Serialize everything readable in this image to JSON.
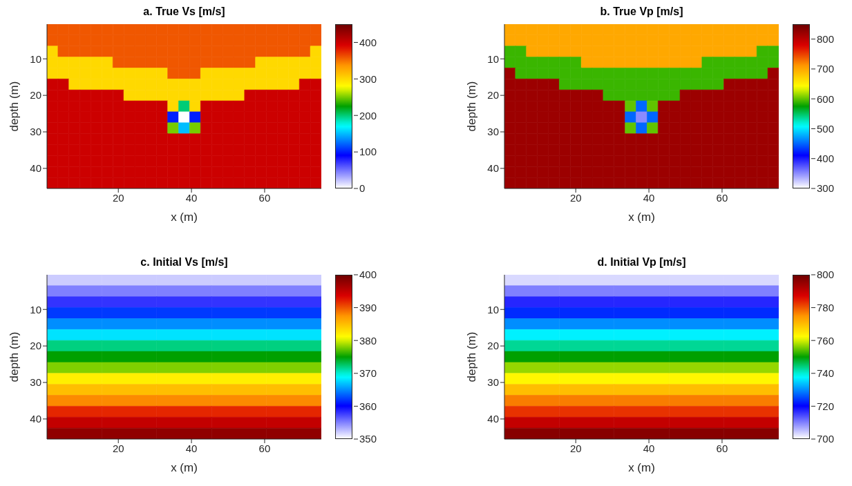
{
  "chart_data": [
    {
      "type": "heatmap",
      "title": "a. True Vs [m/s]",
      "xlabel": "x (m)",
      "ylabel": "depth (m)",
      "xlim": [
        0.5,
        75.5
      ],
      "xticks": [
        20,
        40,
        60
      ],
      "ylim": [
        45.5,
        0.5
      ],
      "yticks": [
        10,
        20,
        30,
        40
      ],
      "clim": [
        0,
        450
      ],
      "cticks": [
        0,
        100,
        200,
        300,
        400
      ],
      "x": [
        2,
        5,
        8,
        11,
        14,
        17,
        20,
        23,
        26,
        29,
        32,
        35,
        38,
        41,
        44,
        47,
        50,
        53,
        56,
        59,
        62,
        65,
        68,
        71,
        74
      ],
      "y": [
        2,
        5,
        8,
        11,
        14,
        17,
        20,
        23,
        26,
        29,
        32,
        35,
        38,
        41,
        44
      ],
      "cells": [
        [
          360,
          360,
          360,
          360,
          360,
          360,
          360,
          360,
          360,
          360,
          360,
          360,
          360,
          360,
          360,
          360,
          360,
          360,
          360,
          360,
          360,
          360,
          360,
          360,
          360
        ],
        [
          360,
          360,
          360,
          360,
          360,
          360,
          360,
          360,
          360,
          360,
          360,
          360,
          360,
          360,
          360,
          360,
          360,
          360,
          360,
          360,
          360,
          360,
          360,
          360,
          360
        ],
        [
          300,
          360,
          360,
          360,
          360,
          360,
          360,
          360,
          360,
          360,
          360,
          360,
          360,
          360,
          360,
          360,
          360,
          360,
          360,
          360,
          360,
          360,
          360,
          360,
          300
        ],
        [
          300,
          300,
          300,
          300,
          300,
          300,
          360,
          360,
          360,
          360,
          360,
          360,
          360,
          360,
          360,
          360,
          360,
          360,
          360,
          300,
          300,
          300,
          300,
          300,
          300
        ],
        [
          300,
          300,
          300,
          300,
          300,
          300,
          300,
          300,
          300,
          300,
          300,
          360,
          360,
          360,
          300,
          300,
          300,
          300,
          300,
          300,
          300,
          300,
          300,
          300,
          300
        ],
        [
          400,
          400,
          300,
          300,
          300,
          300,
          300,
          300,
          300,
          300,
          300,
          300,
          300,
          300,
          300,
          300,
          300,
          300,
          300,
          300,
          300,
          300,
          300,
          400,
          400
        ],
        [
          400,
          400,
          400,
          400,
          400,
          400,
          400,
          300,
          300,
          300,
          300,
          300,
          300,
          300,
          300,
          300,
          300,
          300,
          400,
          400,
          400,
          400,
          400,
          400,
          400
        ],
        [
          400,
          400,
          400,
          400,
          400,
          400,
          400,
          400,
          400,
          400,
          400,
          300,
          200,
          300,
          400,
          400,
          400,
          400,
          400,
          400,
          400,
          400,
          400,
          400,
          400
        ],
        [
          400,
          400,
          400,
          400,
          400,
          400,
          400,
          400,
          400,
          400,
          400,
          100,
          0,
          100,
          400,
          400,
          400,
          400,
          400,
          400,
          400,
          400,
          400,
          400,
          400
        ],
        [
          400,
          400,
          400,
          400,
          400,
          400,
          400,
          400,
          400,
          400,
          400,
          250,
          150,
          250,
          400,
          400,
          400,
          400,
          400,
          400,
          400,
          400,
          400,
          400,
          400
        ],
        [
          400,
          400,
          400,
          400,
          400,
          400,
          400,
          400,
          400,
          400,
          400,
          400,
          400,
          400,
          400,
          400,
          400,
          400,
          400,
          400,
          400,
          400,
          400,
          400,
          400
        ],
        [
          400,
          400,
          400,
          400,
          400,
          400,
          400,
          400,
          400,
          400,
          400,
          400,
          400,
          400,
          400,
          400,
          400,
          400,
          400,
          400,
          400,
          400,
          400,
          400,
          400
        ],
        [
          400,
          400,
          400,
          400,
          400,
          400,
          400,
          400,
          400,
          400,
          400,
          400,
          400,
          400,
          400,
          400,
          400,
          400,
          400,
          400,
          400,
          400,
          400,
          400,
          400
        ],
        [
          400,
          400,
          400,
          400,
          400,
          400,
          400,
          400,
          400,
          400,
          400,
          400,
          400,
          400,
          400,
          400,
          400,
          400,
          400,
          400,
          400,
          400,
          400,
          400,
          400
        ],
        [
          400,
          400,
          400,
          400,
          400,
          400,
          400,
          400,
          400,
          400,
          400,
          400,
          400,
          400,
          400,
          400,
          400,
          400,
          400,
          400,
          400,
          400,
          400,
          400,
          400
        ]
      ]
    },
    {
      "type": "heatmap",
      "title": "b. True Vp [m/s]",
      "xlabel": "x (m)",
      "ylabel": "depth (m)",
      "xlim": [
        0.5,
        75.5
      ],
      "xticks": [
        20,
        40,
        60
      ],
      "ylim": [
        45.5,
        0.5
      ],
      "yticks": [
        10,
        20,
        30,
        40
      ],
      "clim": [
        300,
        850
      ],
      "cticks": [
        300,
        400,
        500,
        600,
        700,
        800
      ],
      "x": [
        2,
        5,
        8,
        11,
        14,
        17,
        20,
        23,
        26,
        29,
        32,
        35,
        38,
        41,
        44,
        47,
        50,
        53,
        56,
        59,
        62,
        65,
        68,
        71,
        74
      ],
      "y": [
        2,
        5,
        8,
        11,
        14,
        17,
        20,
        23,
        26,
        29,
        32,
        35,
        38,
        41,
        44
      ],
      "cells": [
        [
          700,
          700,
          700,
          700,
          700,
          700,
          700,
          700,
          700,
          700,
          700,
          700,
          700,
          700,
          700,
          700,
          700,
          700,
          700,
          700,
          700,
          700,
          700,
          700,
          700
        ],
        [
          700,
          700,
          700,
          700,
          700,
          700,
          700,
          700,
          700,
          700,
          700,
          700,
          700,
          700,
          700,
          700,
          700,
          700,
          700,
          700,
          700,
          700,
          700,
          700,
          700
        ],
        [
          590,
          590,
          700,
          700,
          700,
          700,
          700,
          700,
          700,
          700,
          700,
          700,
          700,
          700,
          700,
          700,
          700,
          700,
          700,
          700,
          700,
          700,
          700,
          590,
          590
        ],
        [
          590,
          590,
          590,
          590,
          590,
          590,
          590,
          700,
          700,
          700,
          700,
          700,
          700,
          700,
          700,
          700,
          700,
          700,
          590,
          590,
          590,
          590,
          590,
          590,
          590
        ],
        [
          820,
          590,
          590,
          590,
          590,
          590,
          590,
          590,
          590,
          590,
          590,
          590,
          590,
          590,
          590,
          590,
          590,
          590,
          590,
          590,
          590,
          590,
          590,
          590,
          820
        ],
        [
          820,
          820,
          820,
          820,
          820,
          590,
          590,
          590,
          590,
          590,
          590,
          590,
          590,
          590,
          590,
          590,
          590,
          590,
          590,
          590,
          820,
          820,
          820,
          820,
          820
        ],
        [
          820,
          820,
          820,
          820,
          820,
          820,
          820,
          820,
          820,
          590,
          590,
          590,
          590,
          590,
          590,
          590,
          820,
          820,
          820,
          820,
          820,
          820,
          820,
          820,
          820
        ],
        [
          820,
          820,
          820,
          820,
          820,
          820,
          820,
          820,
          820,
          820,
          820,
          600,
          450,
          600,
          820,
          820,
          820,
          820,
          820,
          820,
          820,
          820,
          820,
          820,
          820
        ],
        [
          820,
          820,
          820,
          820,
          820,
          820,
          820,
          820,
          820,
          820,
          820,
          450,
          350,
          450,
          820,
          820,
          820,
          820,
          820,
          820,
          820,
          820,
          820,
          820,
          820
        ],
        [
          820,
          820,
          820,
          820,
          820,
          820,
          820,
          820,
          820,
          820,
          820,
          600,
          450,
          600,
          820,
          820,
          820,
          820,
          820,
          820,
          820,
          820,
          820,
          820,
          820
        ],
        [
          820,
          820,
          820,
          820,
          820,
          820,
          820,
          820,
          820,
          820,
          820,
          820,
          820,
          820,
          820,
          820,
          820,
          820,
          820,
          820,
          820,
          820,
          820,
          820,
          820
        ],
        [
          820,
          820,
          820,
          820,
          820,
          820,
          820,
          820,
          820,
          820,
          820,
          820,
          820,
          820,
          820,
          820,
          820,
          820,
          820,
          820,
          820,
          820,
          820,
          820,
          820
        ],
        [
          820,
          820,
          820,
          820,
          820,
          820,
          820,
          820,
          820,
          820,
          820,
          820,
          820,
          820,
          820,
          820,
          820,
          820,
          820,
          820,
          820,
          820,
          820,
          820,
          820
        ],
        [
          820,
          820,
          820,
          820,
          820,
          820,
          820,
          820,
          820,
          820,
          820,
          820,
          820,
          820,
          820,
          820,
          820,
          820,
          820,
          820,
          820,
          820,
          820,
          820,
          820
        ],
        [
          820,
          820,
          820,
          820,
          820,
          820,
          820,
          820,
          820,
          820,
          820,
          820,
          820,
          820,
          820,
          820,
          820,
          820,
          820,
          820,
          820,
          820,
          820,
          820,
          820
        ]
      ]
    },
    {
      "type": "heatmap",
      "title": "c. Initial Vs [m/s]",
      "xlabel": "x (m)",
      "ylabel": "depth (m)",
      "xlim": [
        0.5,
        75.5
      ],
      "xticks": [
        20,
        40,
        60
      ],
      "ylim": [
        45.5,
        0.5
      ],
      "yticks": [
        10,
        20,
        30,
        40
      ],
      "clim": [
        350,
        400
      ],
      "cticks": [
        350,
        360,
        370,
        380,
        390,
        400
      ],
      "x": [
        8,
        23,
        38,
        53,
        68
      ],
      "y": [
        2,
        5,
        8,
        11,
        14,
        17,
        20,
        23,
        26,
        29,
        32,
        35,
        38,
        41,
        44
      ],
      "cells": [
        [
          352,
          352,
          352,
          352,
          352
        ],
        [
          355,
          355,
          355,
          355,
          355
        ],
        [
          358,
          358,
          358,
          358,
          358
        ],
        [
          362,
          362,
          362,
          362,
          362
        ],
        [
          365,
          365,
          365,
          365,
          365
        ],
        [
          368,
          368,
          368,
          368,
          368
        ],
        [
          372,
          372,
          372,
          372,
          372
        ],
        [
          375,
          375,
          375,
          375,
          375
        ],
        [
          378,
          378,
          378,
          378,
          378
        ],
        [
          382,
          382,
          382,
          382,
          382
        ],
        [
          385,
          385,
          385,
          385,
          385
        ],
        [
          388,
          388,
          388,
          388,
          388
        ],
        [
          392,
          392,
          392,
          392,
          392
        ],
        [
          395,
          395,
          395,
          395,
          395
        ],
        [
          398,
          398,
          398,
          398,
          398
        ]
      ]
    },
    {
      "type": "heatmap",
      "title": "d. Initial Vp [m/s]",
      "xlabel": "x (m)",
      "ylabel": "depth (m)",
      "xlim": [
        0.5,
        75.5
      ],
      "xticks": [
        20,
        40,
        60
      ],
      "ylim": [
        45.5,
        0.5
      ],
      "yticks": [
        10,
        20,
        30,
        40
      ],
      "clim": [
        700,
        800
      ],
      "cticks": [
        700,
        720,
        740,
        760,
        780,
        800
      ],
      "x": [
        8,
        23,
        38,
        53,
        68
      ],
      "y": [
        2,
        5,
        8,
        11,
        14,
        17,
        20,
        23,
        26,
        29,
        32,
        35,
        38,
        41,
        44
      ],
      "cells": [
        [
          703,
          703,
          703,
          703,
          703
        ],
        [
          710,
          710,
          710,
          710,
          710
        ],
        [
          717,
          717,
          717,
          717,
          717
        ],
        [
          723,
          723,
          723,
          723,
          723
        ],
        [
          730,
          730,
          730,
          730,
          730
        ],
        [
          737,
          737,
          737,
          737,
          737
        ],
        [
          743,
          743,
          743,
          743,
          743
        ],
        [
          750,
          750,
          750,
          750,
          750
        ],
        [
          757,
          757,
          757,
          757,
          757
        ],
        [
          763,
          763,
          763,
          763,
          763
        ],
        [
          770,
          770,
          770,
          770,
          770
        ],
        [
          777,
          777,
          777,
          777,
          777
        ],
        [
          783,
          783,
          783,
          783,
          783
        ],
        [
          790,
          790,
          790,
          790,
          790
        ],
        [
          797,
          797,
          797,
          797,
          797
        ]
      ]
    }
  ]
}
